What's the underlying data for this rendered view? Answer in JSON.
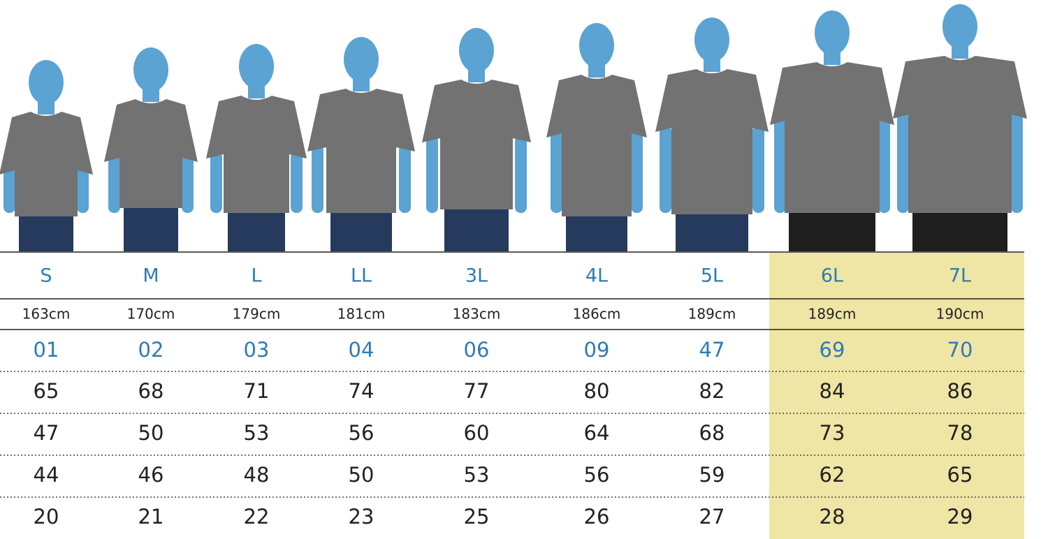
{
  "table": {
    "sizes": [
      "S",
      "M",
      "L",
      "LL",
      "3L",
      "4L",
      "5L",
      "6L",
      "7L"
    ],
    "heights": [
      "163cm",
      "170cm",
      "179cm",
      "181cm",
      "183cm",
      "186cm",
      "189cm",
      "189cm",
      "190cm"
    ],
    "codes": [
      "01",
      "02",
      "03",
      "04",
      "06",
      "09",
      "47",
      "69",
      "70"
    ],
    "rows": [
      [
        65,
        68,
        71,
        74,
        77,
        80,
        82,
        84,
        86
      ],
      [
        47,
        50,
        53,
        56,
        60,
        64,
        68,
        73,
        78
      ],
      [
        44,
        46,
        48,
        50,
        53,
        56,
        59,
        62,
        65
      ],
      [
        20,
        21,
        22,
        23,
        25,
        26,
        27,
        28,
        29
      ]
    ]
  }
}
